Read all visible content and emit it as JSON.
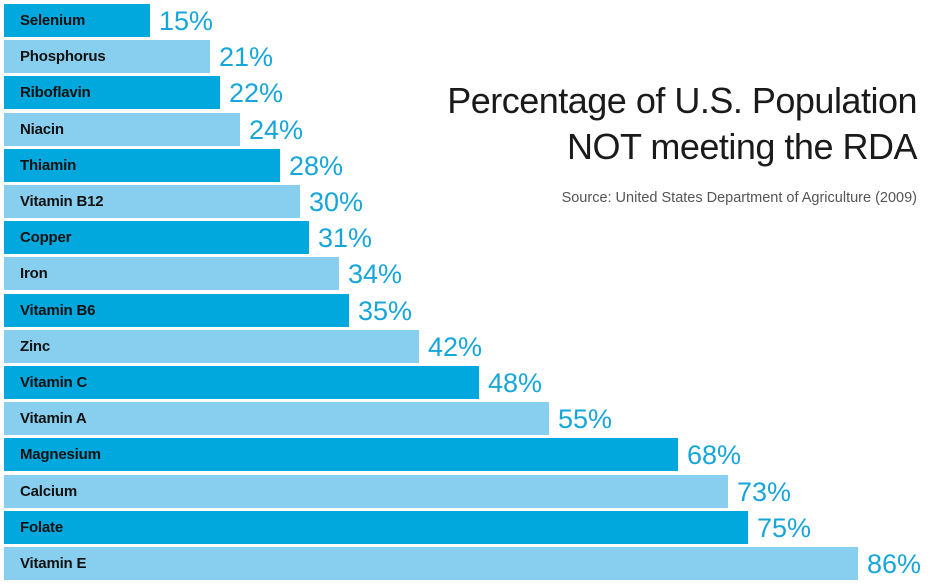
{
  "chart_data": {
    "type": "bar",
    "orientation": "horizontal",
    "title": "Percentage of U.S. Population NOT meeting the RDA",
    "title_lines": [
      "Percentage of U.S. Population",
      "NOT meeting the RDA"
    ],
    "subtitle": "Source: United States Department of Agriculture (2009)",
    "xlabel": "",
    "ylabel": "",
    "xlim": [
      0,
      100
    ],
    "grid": false,
    "categories": [
      "Selenium",
      "Phosphorus",
      "Riboflavin",
      "Niacin",
      "Thiamin",
      "Vitamin B12",
      "Copper",
      "Iron",
      "Vitamin B6",
      "Zinc",
      "Vitamin C",
      "Vitamin A",
      "Magnesium",
      "Calcium",
      "Folate",
      "Vitamin E"
    ],
    "values": [
      15,
      21,
      22,
      24,
      28,
      30,
      31,
      34,
      35,
      42,
      48,
      55,
      68,
      73,
      75,
      86
    ],
    "value_labels": [
      "15%",
      "21%",
      "22%",
      "24%",
      "28%",
      "30%",
      "31%",
      "34%",
      "35%",
      "42%",
      "48%",
      "55%",
      "68%",
      "73%",
      "75%",
      "86%"
    ],
    "colors": {
      "dark": "#00a8de",
      "light": "#88cfef",
      "value_text": "#17a6da"
    }
  }
}
